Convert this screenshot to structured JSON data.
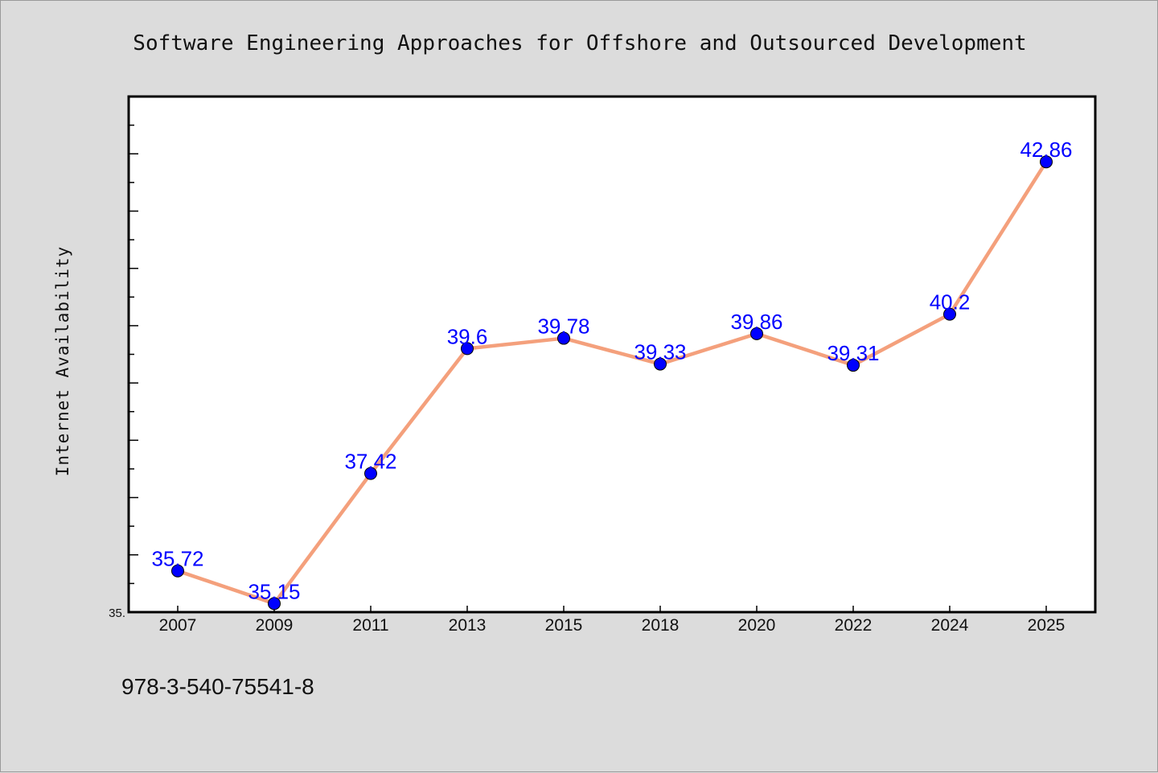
{
  "chart_data": {
    "type": "line",
    "title": "Software Engineering Approaches for Offshore and Outsourced Development",
    "xlabel": "",
    "ylabel": "Internet Availability",
    "categories": [
      "2007",
      "2009",
      "2011",
      "2013",
      "2015",
      "2018",
      "2020",
      "2022",
      "2024",
      "2025"
    ],
    "series": [
      {
        "values": [
          35.72,
          35.15,
          37.42,
          39.6,
          39.78,
          39.33,
          39.86,
          39.31,
          40.2,
          42.86
        ],
        "labels": [
          "35.72",
          "35.15",
          "37.42",
          "39.6",
          "39.78",
          "39.33",
          "39.86",
          "39.31",
          "40.2",
          "42.86"
        ],
        "line_color": "#f4a07c",
        "marker_color": "#0000ff"
      }
    ],
    "ylim": [
      35.0,
      44.0
    ],
    "y_tick_label": "35.",
    "grid": false,
    "legend": "none"
  },
  "footer": {
    "isbn": "978-3-540-75541-8"
  }
}
